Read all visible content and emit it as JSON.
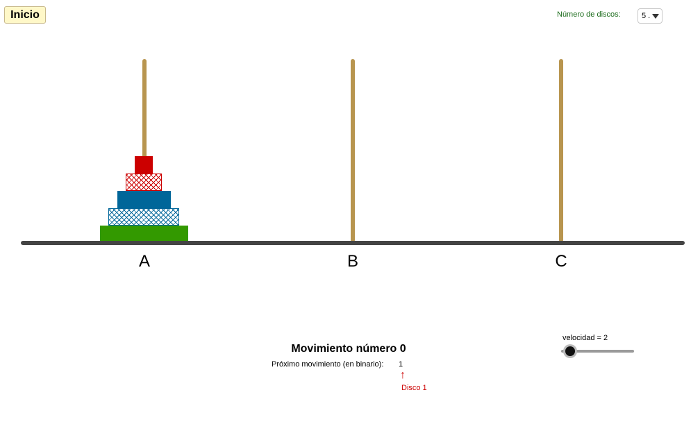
{
  "controls": {
    "start_label": "Inicio",
    "disc_count_label": "Número de discos:",
    "disc_count_value": "5 ."
  },
  "pegs": [
    {
      "label": "A"
    },
    {
      "label": "B"
    },
    {
      "label": "C"
    }
  ],
  "disks": [
    {
      "number": 1,
      "peg": "A",
      "color": "#cc0000",
      "style": "solid"
    },
    {
      "number": 2,
      "peg": "A",
      "color": "#cc0000",
      "style": "hatched"
    },
    {
      "number": 3,
      "peg": "A",
      "color": "#006699",
      "style": "solid"
    },
    {
      "number": 4,
      "peg": "A",
      "color": "#006699",
      "style": "hatched"
    },
    {
      "number": 5,
      "peg": "A",
      "color": "#339900",
      "style": "solid"
    }
  ],
  "colors": {
    "rod": "#b8954f",
    "base": "#444444",
    "start_button_bg": "#fff8c8",
    "label_green": "#1a6b1a",
    "hint_red": "#cc0000"
  },
  "status": {
    "move_title": "Movimiento número 0",
    "next_move_label": "Próximo movimiento (en binario):",
    "next_move_value": "1",
    "arrow": "↑",
    "next_disk_label": "Disco 1"
  },
  "speed": {
    "label": "velocidad = 2",
    "value": 2
  }
}
